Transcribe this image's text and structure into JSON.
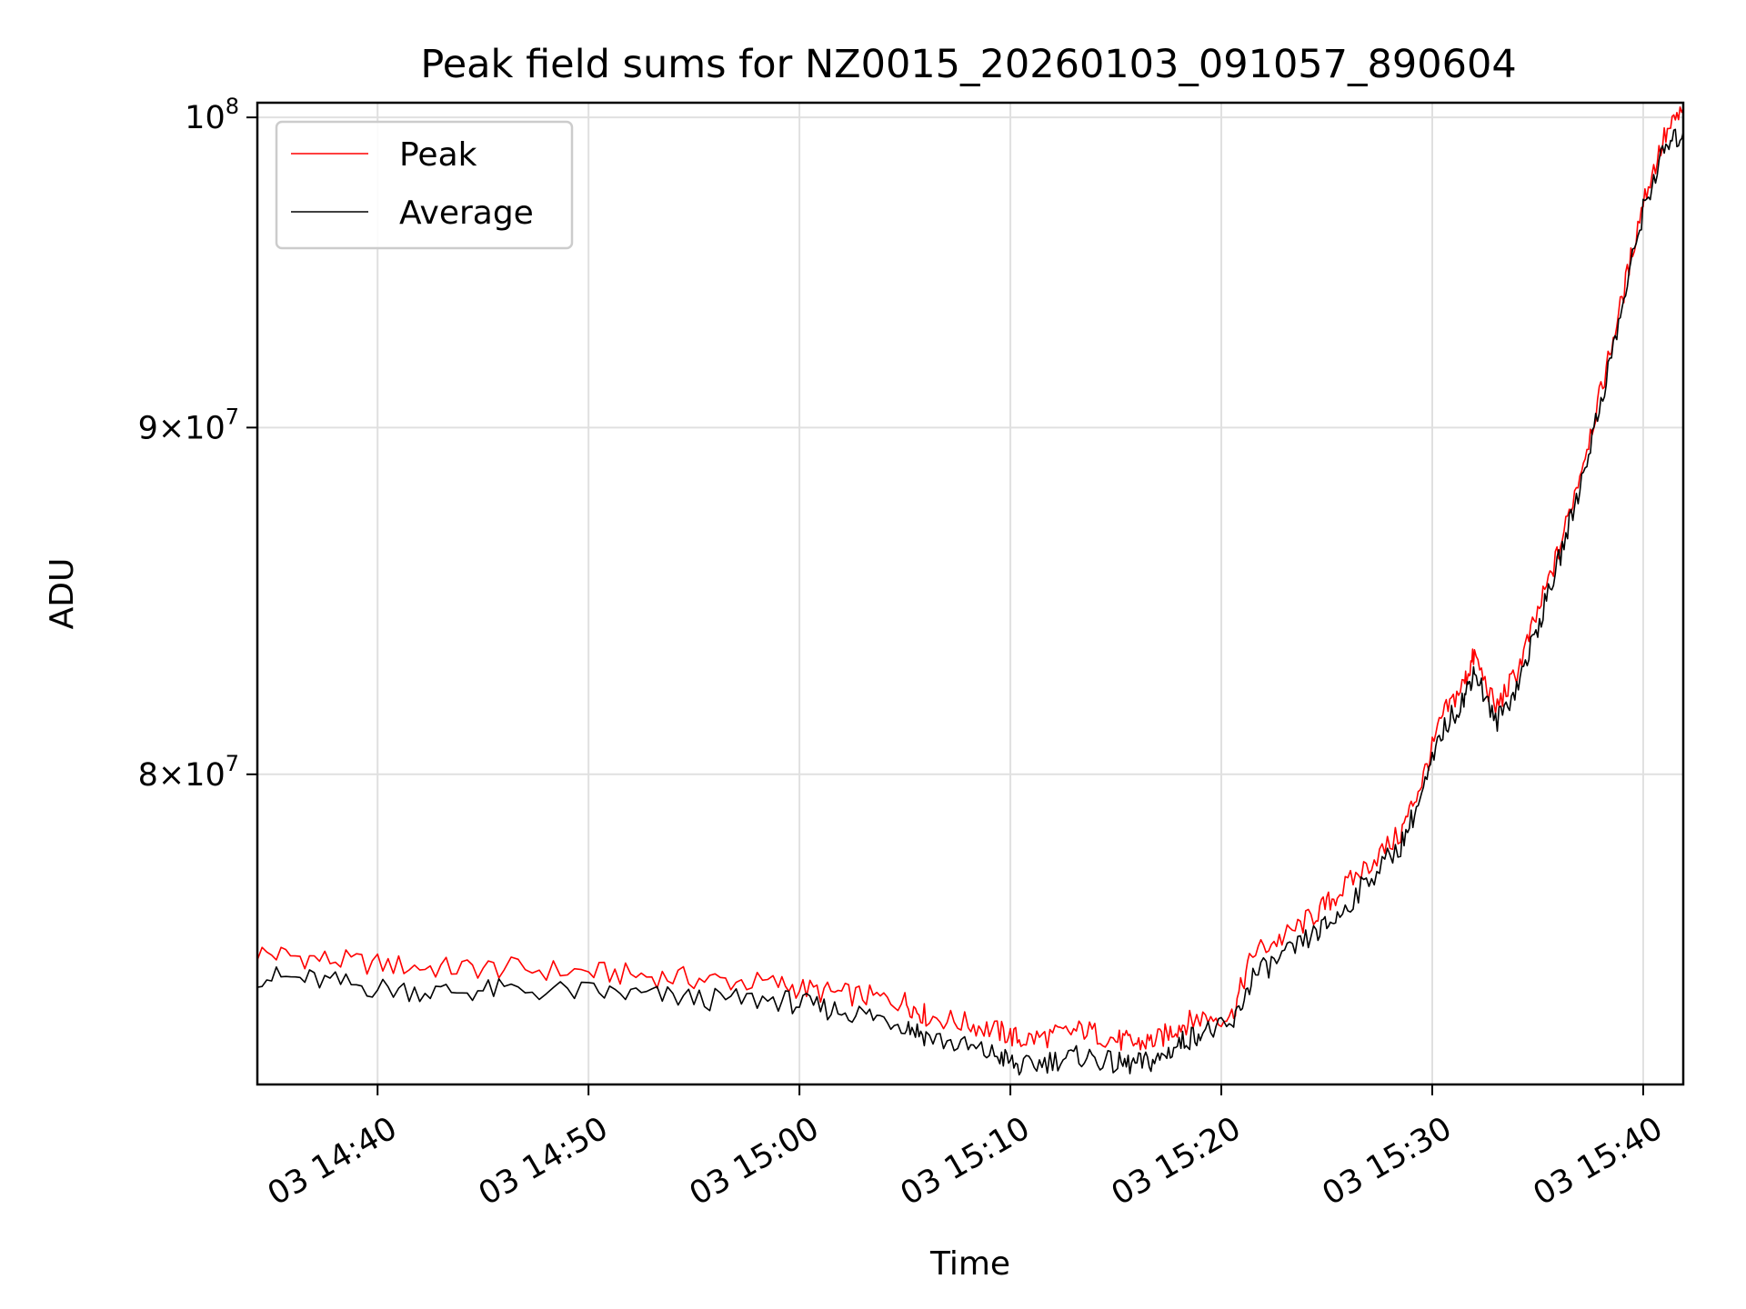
{
  "chart_data": {
    "type": "line",
    "title": "Peak field sums for NZ0015_20260103_091057_890604",
    "xlabel": "Time",
    "ylabel": "ADU",
    "yscale": "log",
    "xlim_minutes": [
      694.3,
      761.9
    ],
    "ylim": [
      72000000,
      100500000
    ],
    "x_unit": "minutes since 03 00:00",
    "x_ticks": [
      {
        "value": 700,
        "label": "03 14:40"
      },
      {
        "value": 710,
        "label": "03 14:50"
      },
      {
        "value": 720,
        "label": "03 15:00"
      },
      {
        "value": 730,
        "label": "03 15:10"
      },
      {
        "value": 740,
        "label": "03 15:20"
      },
      {
        "value": 750,
        "label": "03 15:30"
      },
      {
        "value": 760,
        "label": "03 15:40"
      }
    ],
    "y_ticks": [
      {
        "value": 80000000,
        "mantissa": "8",
        "exponent": "7"
      },
      {
        "value": 90000000,
        "mantissa": "9",
        "exponent": "7"
      },
      {
        "value": 100000000,
        "mantissa": "",
        "exponent": "8"
      }
    ],
    "grid": true,
    "legend_position": "top-left",
    "series": [
      {
        "name": "Peak",
        "color": "#ff0000",
        "points": [
          [
            694.3,
            75300000
          ],
          [
            697,
            75150000
          ],
          [
            700,
            75000000
          ],
          [
            703,
            74900000
          ],
          [
            706,
            74900000
          ],
          [
            710,
            74800000
          ],
          [
            713,
            74700000
          ],
          [
            716,
            74600000
          ],
          [
            719,
            74500000
          ],
          [
            721,
            74300000
          ],
          [
            723,
            74200000
          ],
          [
            725,
            74050000
          ],
          [
            726,
            73700000
          ],
          [
            728,
            73500000
          ],
          [
            729.5,
            73300000
          ],
          [
            730.5,
            73100000
          ],
          [
            732,
            73200000
          ],
          [
            733.5,
            73350000
          ],
          [
            735,
            73100000
          ],
          [
            736,
            73000000
          ],
          [
            737,
            73100000
          ],
          [
            738,
            73450000
          ],
          [
            739,
            73650000
          ],
          [
            740.5,
            73700000
          ],
          [
            741.5,
            75300000
          ],
          [
            743,
            75700000
          ],
          [
            744.5,
            76300000
          ],
          [
            745.5,
            76800000
          ],
          [
            747,
            77600000
          ],
          [
            748.5,
            78400000
          ],
          [
            749.5,
            79800000
          ],
          [
            750.5,
            81600000
          ],
          [
            751.5,
            82500000
          ],
          [
            752,
            83300000
          ],
          [
            753,
            81800000
          ],
          [
            754,
            82800000
          ],
          [
            755,
            84500000
          ],
          [
            756,
            86300000
          ],
          [
            757,
            88600000
          ],
          [
            758,
            91100000
          ],
          [
            759,
            94000000
          ],
          [
            760,
            97200000
          ],
          [
            761,
            99300000
          ],
          [
            761.9,
            100300000
          ]
        ]
      },
      {
        "name": "Average",
        "color": "#000000",
        "points": [
          [
            694.3,
            74700000
          ],
          [
            697,
            74600000
          ],
          [
            700,
            74400000
          ],
          [
            703,
            74300000
          ],
          [
            706,
            74350000
          ],
          [
            710,
            74300000
          ],
          [
            713,
            74200000
          ],
          [
            716,
            74100000
          ],
          [
            719,
            74100000
          ],
          [
            721,
            73900000
          ],
          [
            723,
            73750000
          ],
          [
            725,
            73500000
          ],
          [
            726,
            73200000
          ],
          [
            728,
            72900000
          ],
          [
            729.5,
            72700000
          ],
          [
            730.5,
            72400000
          ],
          [
            732,
            72600000
          ],
          [
            733.5,
            72700000
          ],
          [
            735,
            72500000
          ],
          [
            736,
            72500000
          ],
          [
            737,
            72600000
          ],
          [
            738,
            73000000
          ],
          [
            739,
            73300000
          ],
          [
            740.5,
            73400000
          ],
          [
            741.5,
            74700000
          ],
          [
            743,
            75200000
          ],
          [
            744.5,
            75800000
          ],
          [
            745.5,
            76200000
          ],
          [
            747,
            77200000
          ],
          [
            748.5,
            78100000
          ],
          [
            749.5,
            79400000
          ],
          [
            750.5,
            81200000
          ],
          [
            751.5,
            82100000
          ],
          [
            752,
            82900000
          ],
          [
            753,
            81400000
          ],
          [
            754,
            82400000
          ],
          [
            755,
            84100000
          ],
          [
            756,
            86000000
          ],
          [
            757,
            88200000
          ],
          [
            758,
            90800000
          ],
          [
            759,
            93700000
          ],
          [
            760,
            96900000
          ],
          [
            761,
            98900000
          ],
          [
            761.9,
            99500000
          ]
        ]
      }
    ]
  }
}
